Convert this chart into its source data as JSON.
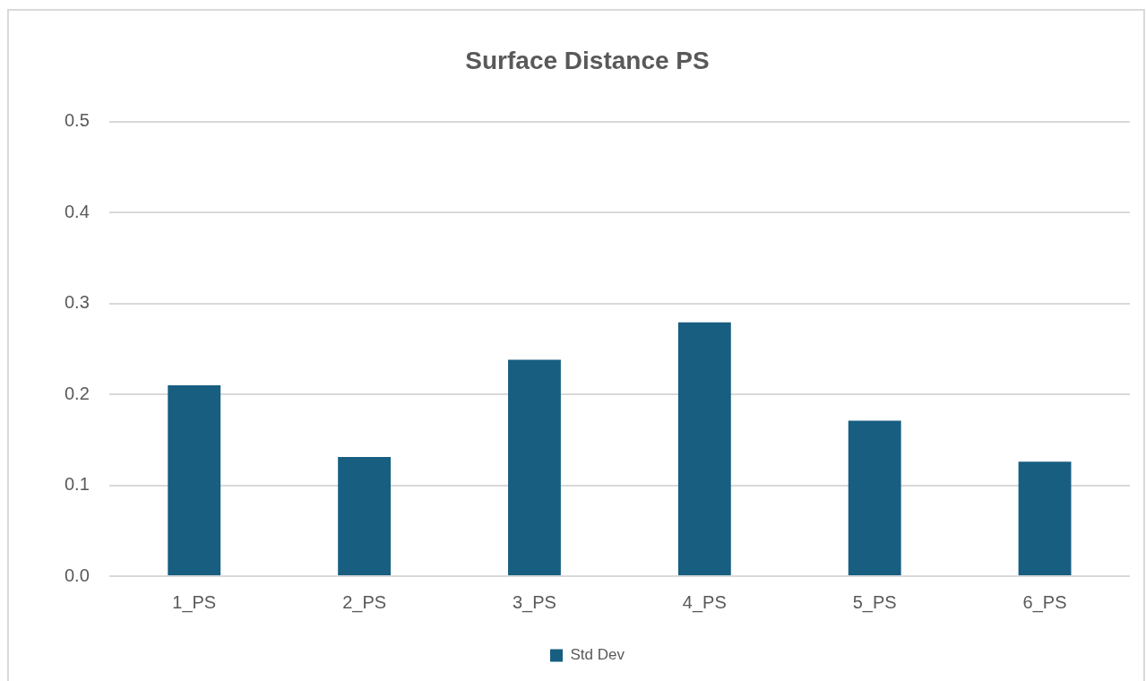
{
  "chart_data": {
    "type": "bar",
    "title": "Surface Distance PS",
    "categories": [
      "1_PS",
      "2_PS",
      "3_PS",
      "4_PS",
      "5_PS",
      "6_PS"
    ],
    "series": [
      {
        "name": "Std Dev",
        "color": "#175e81",
        "values": [
          0.21,
          0.131,
          0.238,
          0.279,
          0.171,
          0.126
        ]
      }
    ],
    "ylim": [
      0,
      0.5
    ],
    "yticks": [
      {
        "value": 0,
        "label": "0.0"
      },
      0.1,
      0.2,
      0.3,
      0.4,
      0.5
    ],
    "grid": "y",
    "legend": "bottom"
  }
}
